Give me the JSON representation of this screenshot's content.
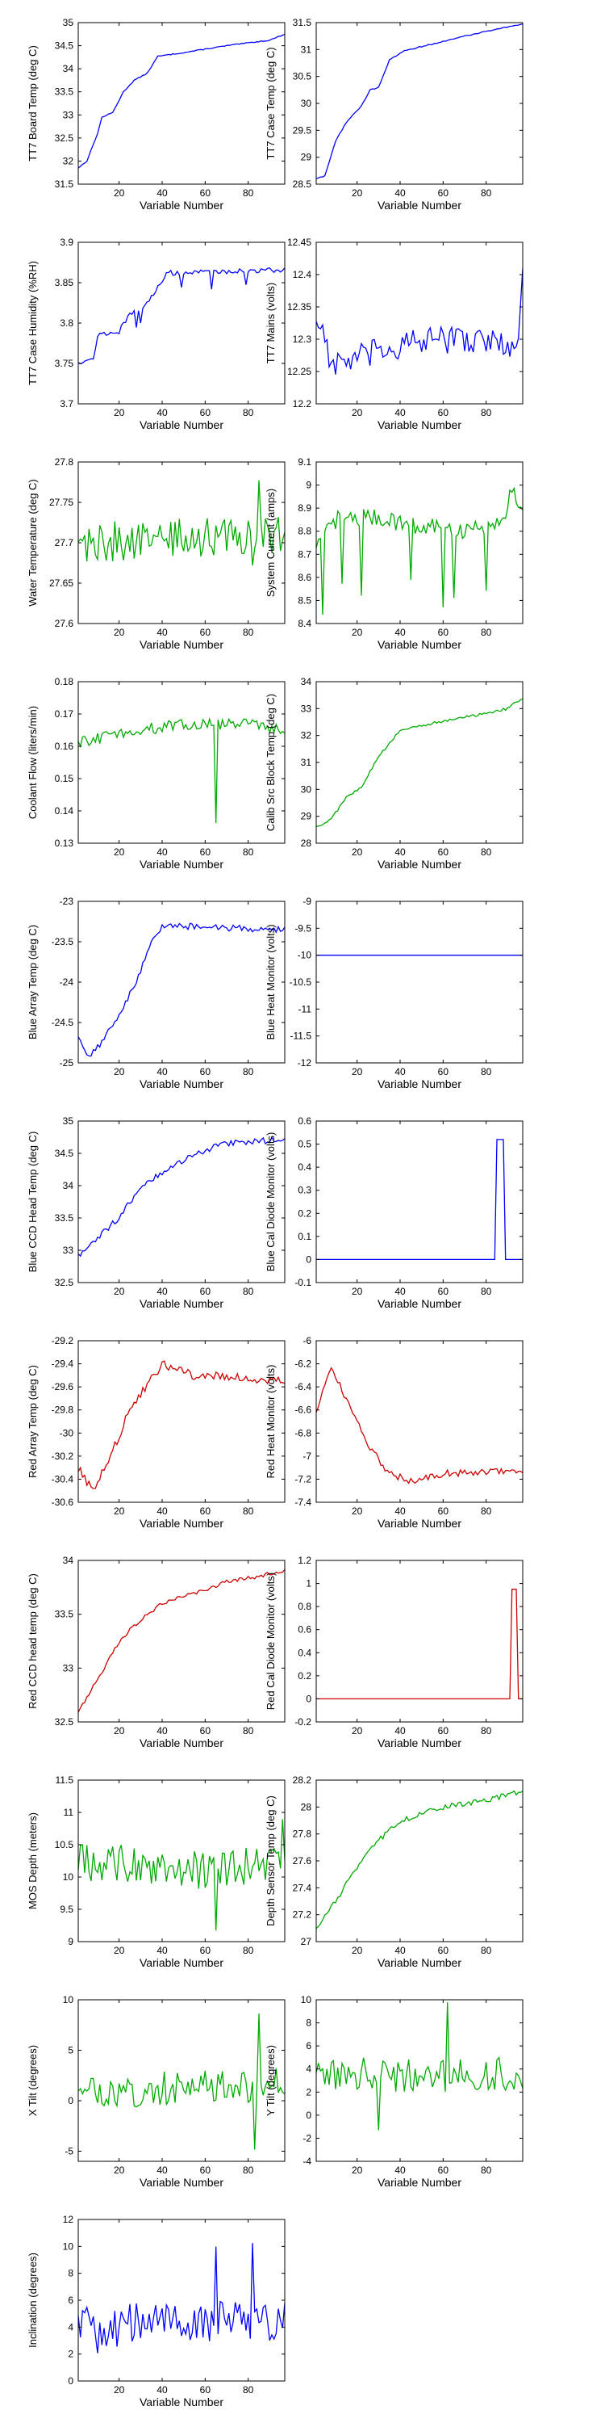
{
  "chart_data": [
    {
      "type": "line",
      "ylabel": "TT7 Board Temp (deg C)",
      "xlabel": "Variable Number",
      "color": "#0000ff",
      "ylim": [
        31.5,
        35
      ],
      "yticks": [
        31.5,
        32,
        32.5,
        33,
        33.5,
        34,
        34.5,
        35
      ],
      "xlim": [
        1,
        97
      ],
      "xticks": [
        20,
        40,
        60,
        80
      ],
      "knots": [
        [
          1,
          31.85
        ],
        [
          5,
          32.0
        ],
        [
          10,
          32.6
        ],
        [
          12,
          32.95
        ],
        [
          17,
          33.05
        ],
        [
          22,
          33.5
        ],
        [
          27,
          33.75
        ],
        [
          33,
          33.9
        ],
        [
          38,
          34.27
        ],
        [
          50,
          34.35
        ],
        [
          70,
          34.5
        ],
        [
          90,
          34.62
        ],
        [
          97,
          34.75
        ]
      ],
      "noise": 0.01
    },
    {
      "type": "line",
      "ylabel": "TT7 Case Temp (deg C)",
      "xlabel": "Variable Number",
      "color": "#0000ff",
      "ylim": [
        28.5,
        31.5
      ],
      "yticks": [
        28.5,
        29,
        29.5,
        30,
        30.5,
        31,
        31.5
      ],
      "xlim": [
        1,
        97
      ],
      "xticks": [
        20,
        40,
        60,
        80
      ],
      "knots": [
        [
          1,
          28.6
        ],
        [
          5,
          28.65
        ],
        [
          10,
          29.3
        ],
        [
          15,
          29.65
        ],
        [
          22,
          29.95
        ],
        [
          26,
          30.25
        ],
        [
          30,
          30.3
        ],
        [
          35,
          30.8
        ],
        [
          42,
          30.98
        ],
        [
          55,
          31.1
        ],
        [
          70,
          31.25
        ],
        [
          85,
          31.38
        ],
        [
          97,
          31.48
        ]
      ],
      "noise": 0.01
    },
    {
      "type": "line",
      "ylabel": "TT7 Case Humidity (%RH)",
      "xlabel": "Variable Number",
      "color": "#0000ff",
      "ylim": [
        3.7,
        3.9
      ],
      "yticks": [
        3.7,
        3.75,
        3.8,
        3.85,
        3.9
      ],
      "xlim": [
        1,
        97
      ],
      "xticks": [
        20,
        40,
        60,
        80
      ],
      "knots": [
        [
          1,
          3.752
        ],
        [
          8,
          3.755
        ],
        [
          10,
          3.785
        ],
        [
          20,
          3.79
        ],
        [
          25,
          3.81
        ],
        [
          32,
          3.82
        ],
        [
          38,
          3.845
        ],
        [
          42,
          3.862
        ],
        [
          97,
          3.866
        ]
      ],
      "noise": 0.003,
      "spikes": [
        [
          28,
          -0.02
        ],
        [
          30,
          -0.015
        ],
        [
          49,
          -0.02
        ],
        [
          63,
          -0.02
        ],
        [
          79,
          -0.018
        ]
      ]
    },
    {
      "type": "line",
      "ylabel": "TT7 Mains  (volts)",
      "xlabel": "Variable Number",
      "color": "#0000ff",
      "ylim": [
        12.2,
        12.45
      ],
      "yticks": [
        12.2,
        12.25,
        12.3,
        12.35,
        12.4,
        12.45
      ],
      "xlim": [
        1,
        97
      ],
      "xticks": [
        20,
        40,
        60,
        80
      ],
      "knots": [
        [
          1,
          12.33
        ],
        [
          4,
          12.32
        ],
        [
          8,
          12.26
        ],
        [
          20,
          12.27
        ],
        [
          40,
          12.29
        ],
        [
          60,
          12.3
        ],
        [
          80,
          12.3
        ],
        [
          94,
          12.28
        ],
        [
          97,
          12.4
        ]
      ],
      "noise": 0.022
    },
    {
      "type": "line",
      "ylabel": "Water Temperature (deg C)",
      "xlabel": "Variable Number",
      "color": "#00aa00",
      "ylim": [
        27.6,
        27.8
      ],
      "yticks": [
        27.6,
        27.65,
        27.7,
        27.75,
        27.8
      ],
      "xlim": [
        1,
        97
      ],
      "xticks": [
        20,
        40,
        60,
        80
      ],
      "knots": [
        [
          1,
          27.7
        ],
        [
          97,
          27.71
        ]
      ],
      "noise": 0.025,
      "spikes": [
        [
          85,
          0.085
        ],
        [
          82,
          -0.05
        ]
      ]
    },
    {
      "type": "line",
      "ylabel": "System Current (amps)",
      "xlabel": "Variable Number",
      "color": "#00aa00",
      "ylim": [
        8.4,
        9.1
      ],
      "yticks": [
        8.4,
        8.5,
        8.6,
        8.7,
        8.8,
        8.9,
        9,
        9.1
      ],
      "xlim": [
        1,
        97
      ],
      "xticks": [
        20,
        40,
        60,
        80
      ],
      "knots": [
        [
          1,
          8.72
        ],
        [
          10,
          8.85
        ],
        [
          30,
          8.86
        ],
        [
          50,
          8.82
        ],
        [
          70,
          8.8
        ],
        [
          88,
          8.85
        ],
        [
          92,
          8.98
        ],
        [
          97,
          8.9
        ]
      ],
      "noise": 0.04,
      "spikes": [
        [
          4,
          -0.35
        ],
        [
          13,
          -0.25
        ],
        [
          22,
          -0.3
        ],
        [
          45,
          -0.25
        ],
        [
          60,
          -0.35
        ],
        [
          65,
          -0.28
        ],
        [
          80,
          -0.3
        ]
      ]
    },
    {
      "type": "line",
      "ylabel": "Coolant Flow (liters/min)",
      "xlabel": "Variable Number",
      "color": "#00aa00",
      "ylim": [
        0.13,
        0.18
      ],
      "yticks": [
        0.13,
        0.14,
        0.15,
        0.16,
        0.17,
        0.18
      ],
      "xlim": [
        1,
        97
      ],
      "xticks": [
        20,
        40,
        60,
        80
      ],
      "knots": [
        [
          1,
          0.161
        ],
        [
          20,
          0.164
        ],
        [
          40,
          0.166
        ],
        [
          60,
          0.167
        ],
        [
          80,
          0.167
        ],
        [
          97,
          0.165
        ]
      ],
      "noise": 0.0018,
      "spikes": [
        [
          65,
          -0.032
        ]
      ]
    },
    {
      "type": "line",
      "ylabel": "Calib Src Block Temp (deg C)",
      "xlabel": "Variable Number",
      "color": "#00aa00",
      "ylim": [
        28,
        34
      ],
      "yticks": [
        28,
        29,
        30,
        31,
        32,
        33,
        34
      ],
      "xlim": [
        1,
        97
      ],
      "xticks": [
        20,
        40,
        60,
        80
      ],
      "knots": [
        [
          1,
          28.6
        ],
        [
          8,
          28.9
        ],
        [
          15,
          29.7
        ],
        [
          22,
          30.1
        ],
        [
          30,
          31.2
        ],
        [
          40,
          32.2
        ],
        [
          55,
          32.45
        ],
        [
          75,
          32.75
        ],
        [
          90,
          33.0
        ],
        [
          97,
          33.4
        ]
      ],
      "noise": 0.05
    },
    {
      "type": "line",
      "ylabel": "Blue Array Temp (deg C)",
      "xlabel": "Variable Number",
      "color": "#0000ff",
      "ylim": [
        -25,
        -23
      ],
      "yticks": [
        -25,
        -24.5,
        -24,
        -23.5,
        -23
      ],
      "xlim": [
        1,
        97
      ],
      "xticks": [
        20,
        40,
        60,
        80
      ],
      "knots": [
        [
          1,
          -24.7
        ],
        [
          6,
          -24.9
        ],
        [
          12,
          -24.75
        ],
        [
          20,
          -24.4
        ],
        [
          28,
          -24.0
        ],
        [
          35,
          -23.5
        ],
        [
          40,
          -23.3
        ],
        [
          97,
          -23.35
        ]
      ],
      "noise": 0.04
    },
    {
      "type": "line",
      "ylabel": "Blue Heat Monitor (volts)",
      "xlabel": "Variable Number",
      "color": "#0000ff",
      "ylim": [
        -12,
        -9
      ],
      "yticks": [
        -12,
        -11.5,
        -11,
        -10.5,
        -10,
        -9.5,
        -9
      ],
      "xlim": [
        1,
        97
      ],
      "xticks": [
        20,
        40,
        60,
        80
      ],
      "knots": [
        [
          1,
          -10
        ],
        [
          97,
          -10
        ]
      ],
      "noise": 0
    },
    {
      "type": "line",
      "ylabel": "Blue CCD Head Temp (deg C)",
      "xlabel": "Variable Number",
      "color": "#0000ff",
      "ylim": [
        32.5,
        35
      ],
      "yticks": [
        32.5,
        33,
        33.5,
        34,
        34.5,
        35
      ],
      "xlim": [
        1,
        97
      ],
      "xticks": [
        20,
        40,
        60,
        80
      ],
      "knots": [
        [
          1,
          32.9
        ],
        [
          20,
          33.5
        ],
        [
          30,
          34.0
        ],
        [
          45,
          34.3
        ],
        [
          60,
          34.55
        ],
        [
          70,
          34.65
        ],
        [
          97,
          34.72
        ]
      ],
      "noise": 0.05
    },
    {
      "type": "line",
      "ylabel": "Blue Cal Diode Monitor (volts)",
      "xlabel": "Variable Number",
      "color": "#0000ff",
      "ylim": [
        -0.1,
        0.6
      ],
      "yticks": [
        -0.1,
        0,
        0.1,
        0.2,
        0.3,
        0.4,
        0.5,
        0.6
      ],
      "xlim": [
        1,
        97
      ],
      "xticks": [
        20,
        40,
        60,
        80
      ],
      "knots": [
        [
          1,
          0
        ],
        [
          84,
          0
        ],
        [
          85,
          0.52
        ],
        [
          88,
          0.52
        ],
        [
          89,
          0
        ],
        [
          97,
          0
        ]
      ],
      "noise": 0
    },
    {
      "type": "line",
      "ylabel": "Red Array Temp (deg C)",
      "xlabel": "Variable Number",
      "color": "#cc0000",
      "ylim": [
        -30.6,
        -29.2
      ],
      "yticks": [
        -30.6,
        -30.4,
        -30.2,
        -30,
        -29.8,
        -29.6,
        -29.4,
        -29.2
      ],
      "xlim": [
        1,
        97
      ],
      "xticks": [
        20,
        40,
        60,
        80
      ],
      "knots": [
        [
          1,
          -30.3
        ],
        [
          8,
          -30.5
        ],
        [
          15,
          -30.25
        ],
        [
          25,
          -29.8
        ],
        [
          32,
          -29.6
        ],
        [
          40,
          -29.4
        ],
        [
          55,
          -29.5
        ],
        [
          97,
          -29.55
        ]
      ],
      "noise": 0.04
    },
    {
      "type": "line",
      "ylabel": "Red Heat Monitor (volts)",
      "xlabel": "Variable Number",
      "color": "#cc0000",
      "ylim": [
        -7.4,
        -6
      ],
      "yticks": [
        -7.4,
        -7.2,
        -7,
        -6.8,
        -6.6,
        -6.4,
        -6.2,
        -6
      ],
      "xlim": [
        1,
        97
      ],
      "xticks": [
        20,
        40,
        60,
        80
      ],
      "knots": [
        [
          1,
          -6.6
        ],
        [
          8,
          -6.25
        ],
        [
          15,
          -6.5
        ],
        [
          25,
          -6.9
        ],
        [
          35,
          -7.15
        ],
        [
          45,
          -7.22
        ],
        [
          60,
          -7.15
        ],
        [
          97,
          -7.12
        ]
      ],
      "noise": 0.03
    },
    {
      "type": "line",
      "ylabel": "Red CCD head temp (deg C)",
      "xlabel": "Variable Number",
      "color": "#cc0000",
      "ylim": [
        32.5,
        34
      ],
      "yticks": [
        32.5,
        33,
        33.5,
        34
      ],
      "xlim": [
        1,
        97
      ],
      "xticks": [
        20,
        40,
        60,
        80
      ],
      "knots": [
        [
          1,
          32.6
        ],
        [
          10,
          32.9
        ],
        [
          20,
          33.25
        ],
        [
          30,
          33.45
        ],
        [
          40,
          33.6
        ],
        [
          55,
          33.7
        ],
        [
          70,
          33.8
        ],
        [
          97,
          33.9
        ]
      ],
      "noise": 0.02
    },
    {
      "type": "line",
      "ylabel": "Red Cal Diode Monitor (volts)",
      "xlabel": "Variable Number",
      "color": "#cc0000",
      "ylim": [
        -0.2,
        1.2
      ],
      "yticks": [
        -0.2,
        0,
        0.2,
        0.4,
        0.6,
        0.8,
        1,
        1.2
      ],
      "xlim": [
        1,
        97
      ],
      "xticks": [
        20,
        40,
        60,
        80
      ],
      "knots": [
        [
          1,
          0
        ],
        [
          91,
          0
        ],
        [
          92,
          0.95
        ],
        [
          94,
          0.95
        ],
        [
          95,
          0
        ],
        [
          97,
          0
        ]
      ],
      "noise": 0
    },
    {
      "type": "line",
      "ylabel": "MOS Depth  (meters)",
      "xlabel": "Variable Number",
      "color": "#00aa00",
      "ylim": [
        9,
        11.5
      ],
      "yticks": [
        9,
        9.5,
        10,
        10.5,
        11,
        11.5
      ],
      "xlim": [
        1,
        97
      ],
      "xticks": [
        20,
        40,
        60,
        80
      ],
      "knots": [
        [
          1,
          10.2
        ],
        [
          30,
          10.2
        ],
        [
          60,
          10.1
        ],
        [
          97,
          10.2
        ]
      ],
      "noise": 0.3,
      "spikes": [
        [
          96,
          0.8
        ],
        [
          65,
          -0.7
        ]
      ]
    },
    {
      "type": "line",
      "ylabel": "Depth Sensor Temp (deg C)",
      "xlabel": "Variable Number",
      "color": "#00aa00",
      "ylim": [
        27,
        28.2
      ],
      "yticks": [
        27,
        27.2,
        27.4,
        27.6,
        27.8,
        28,
        28.2
      ],
      "xlim": [
        1,
        97
      ],
      "xticks": [
        20,
        40,
        60,
        80
      ],
      "knots": [
        [
          1,
          27.1
        ],
        [
          10,
          27.3
        ],
        [
          20,
          27.55
        ],
        [
          30,
          27.75
        ],
        [
          40,
          27.9
        ],
        [
          60,
          28.0
        ],
        [
          80,
          28.05
        ],
        [
          97,
          28.12
        ]
      ],
      "noise": 0.02
    },
    {
      "type": "line",
      "ylabel": "X Tilt  (degrees)",
      "xlabel": "Variable Number",
      "color": "#00aa00",
      "ylim": [
        -6,
        10
      ],
      "yticks": [
        -5,
        0,
        5,
        10
      ],
      "xlim": [
        1,
        97
      ],
      "xticks": [
        20,
        40,
        60,
        80
      ],
      "knots": [
        [
          1,
          1
        ],
        [
          97,
          1.5
        ]
      ],
      "noise": 1.8,
      "spikes": [
        [
          85,
          7.5
        ],
        [
          83,
          -5
        ]
      ]
    },
    {
      "type": "line",
      "ylabel": "Y Tilt  (degrees)",
      "xlabel": "Variable Number",
      "color": "#00aa00",
      "ylim": [
        -4,
        10
      ],
      "yticks": [
        -4,
        -2,
        0,
        2,
        4,
        6,
        8,
        10
      ],
      "xlim": [
        1,
        97
      ],
      "xticks": [
        20,
        40,
        60,
        80
      ],
      "knots": [
        [
          1,
          3.5
        ],
        [
          97,
          3.5
        ]
      ],
      "noise": 1.5,
      "spikes": [
        [
          30,
          -5
        ],
        [
          62,
          5.5
        ]
      ]
    },
    {
      "type": "line",
      "ylabel": "Inclination  (degrees)",
      "xlabel": "Variable Number",
      "color": "#0000ff",
      "ylim": [
        0,
        12
      ],
      "yticks": [
        0,
        2,
        4,
        6,
        8,
        10,
        12
      ],
      "xlim": [
        1,
        97
      ],
      "xticks": [
        20,
        40,
        60,
        80
      ],
      "knots": [
        [
          1,
          4.5
        ],
        [
          10,
          3.5
        ],
        [
          30,
          4.5
        ],
        [
          50,
          4
        ],
        [
          70,
          4.5
        ],
        [
          97,
          4.5
        ]
      ],
      "noise": 1.5,
      "spikes": [
        [
          65,
          6.5
        ],
        [
          82,
          5
        ]
      ]
    }
  ]
}
